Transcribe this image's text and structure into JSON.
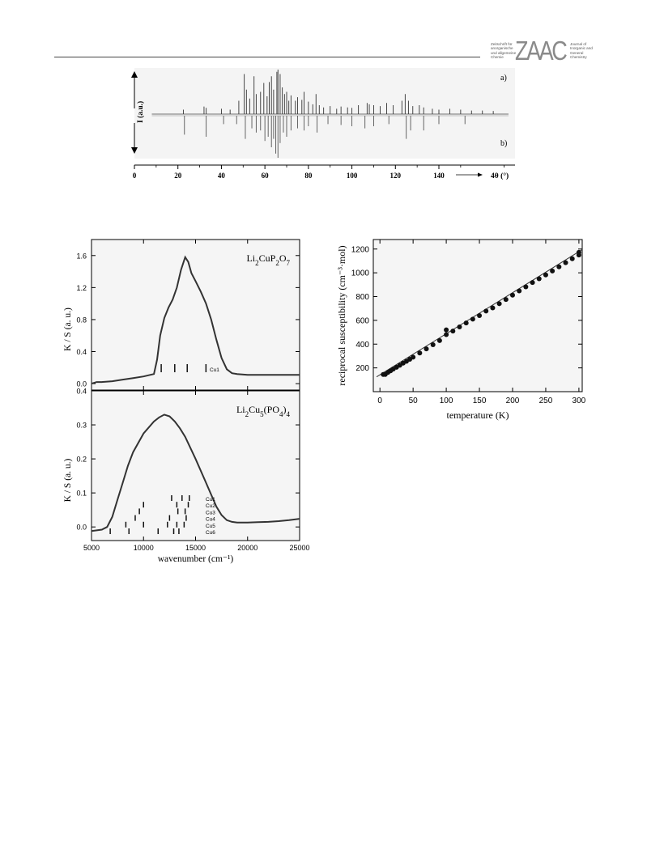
{
  "header": {
    "logo_text": "ZAAC",
    "logo_left": "Zeitschrift für\nanorganische\nund allgemeine\nChemie",
    "logo_right": "Journal of\nInorganic and\nGeneral\nChemistry"
  },
  "chart_data": [
    {
      "type": "line",
      "ylabel": "I (a.u.)",
      "xlabel": "4θ (°)",
      "xlim": [
        0,
        175
      ],
      "xticks": [
        0,
        20,
        40,
        60,
        80,
        100,
        120,
        140
      ],
      "panel_labels": [
        "a)",
        "b)"
      ],
      "series": [
        {
          "panel": "a)",
          "x": [
            22.5,
            32,
            33,
            40,
            44,
            48,
            50.5,
            51.5,
            53,
            55,
            56,
            58,
            59.5,
            61,
            62,
            63,
            64,
            65.5,
            66,
            67,
            68,
            69,
            70,
            71,
            72,
            74,
            75,
            77,
            78,
            80,
            82,
            83.5,
            85,
            87,
            90,
            93,
            95,
            98,
            100,
            103,
            107,
            108,
            110,
            113,
            116,
            119,
            123,
            124.5,
            126,
            128,
            131,
            133,
            137,
            140,
            145,
            150,
            155,
            160,
            165
          ],
          "y": [
            0.1,
            0.17,
            0.14,
            0.12,
            0.1,
            0.3,
            0.9,
            0.55,
            0.35,
            0.85,
            0.45,
            0.5,
            0.7,
            0.4,
            0.72,
            0.85,
            0.55,
            0.95,
            1.0,
            0.9,
            0.6,
            0.45,
            0.5,
            0.3,
            0.42,
            0.3,
            0.38,
            0.32,
            0.5,
            0.28,
            0.22,
            0.45,
            0.2,
            0.15,
            0.18,
            0.12,
            0.17,
            0.15,
            0.14,
            0.2,
            0.25,
            0.22,
            0.2,
            0.18,
            0.25,
            0.2,
            0.3,
            0.45,
            0.3,
            0.18,
            0.2,
            0.15,
            0.12,
            0.1,
            0.12,
            0.1,
            0.08,
            0.08,
            0.07
          ]
        },
        {
          "panel": "b)",
          "x": [
            23,
            33,
            41,
            47,
            51,
            54,
            56,
            58,
            60,
            61.5,
            63,
            64,
            65,
            66,
            67,
            68.5,
            70,
            72,
            75,
            78,
            80,
            84,
            89,
            95,
            100,
            106,
            110,
            117,
            125,
            127,
            133,
            140,
            152
          ],
          "y": [
            0.45,
            0.5,
            0.2,
            0.2,
            0.55,
            0.3,
            0.4,
            0.35,
            0.6,
            0.5,
            0.75,
            0.55,
            0.9,
            1.0,
            0.65,
            0.4,
            0.5,
            0.35,
            0.3,
            0.35,
            0.25,
            0.4,
            0.2,
            0.22,
            0.25,
            0.3,
            0.25,
            0.2,
            0.55,
            0.35,
            0.35,
            0.2,
            0.2
          ]
        }
      ]
    },
    {
      "type": "line",
      "xlabel": "wavenumber (cm⁻¹)",
      "ylabel": "K / S (a. u.)",
      "xlim": [
        5000,
        25000
      ],
      "xticks": [
        5000,
        10000,
        15000,
        20000,
        25000
      ],
      "panels": [
        {
          "label": "Li2CuP2O7",
          "ylim": [
            -0.08,
            1.8
          ],
          "yticks": [
            0.0,
            0.4,
            0.8,
            1.2,
            1.6
          ],
          "curve": {
            "x": [
              5000,
              5500,
              6000,
              7000,
              8000,
              9000,
              10000,
              11000,
              11300,
              11600,
              12000,
              12400,
              12800,
              13200,
              13600,
              14000,
              14300,
              14600,
              15000,
              15500,
              16000,
              16500,
              17000,
              17500,
              18000,
              18500,
              19000,
              20000,
              22000,
              25000
            ],
            "y": [
              0.0,
              0.02,
              0.02,
              0.03,
              0.05,
              0.07,
              0.09,
              0.12,
              0.3,
              0.6,
              0.82,
              0.95,
              1.05,
              1.2,
              1.42,
              1.58,
              1.52,
              1.38,
              1.28,
              1.15,
              1.0,
              0.8,
              0.55,
              0.32,
              0.18,
              0.13,
              0.12,
              0.11,
              0.11,
              0.11
            ]
          },
          "ticks": [
            {
              "name": "Cu1",
              "positions": [
                11700,
                13000,
                14200,
                16000
              ]
            }
          ]
        },
        {
          "label": "Li2Cu5(PO4)4",
          "ylim": [
            -0.04,
            0.4
          ],
          "yticks": [
            0.0,
            0.1,
            0.2,
            0.3,
            0.4
          ],
          "curve": {
            "x": [
              5000,
              5500,
              6000,
              6500,
              7000,
              7500,
              8000,
              8500,
              9000,
              10000,
              11000,
              11500,
              12000,
              12500,
              13000,
              13500,
              14000,
              15000,
              16000,
              17000,
              17500,
              18000,
              18500,
              19000,
              20000,
              21000,
              22000,
              23000,
              24000,
              25000
            ],
            "y": [
              -0.012,
              -0.01,
              -0.008,
              0.0,
              0.03,
              0.08,
              0.13,
              0.18,
              0.22,
              0.275,
              0.31,
              0.322,
              0.33,
              0.325,
              0.31,
              0.29,
              0.265,
              0.2,
              0.13,
              0.06,
              0.035,
              0.02,
              0.015,
              0.013,
              0.013,
              0.014,
              0.015,
              0.017,
              0.02,
              0.024
            ]
          },
          "ticks": [
            {
              "name": "Cu6",
              "positions": [
                6800,
                8600,
                11400,
                12900,
                13400
              ]
            },
            {
              "name": "Cu5",
              "positions": [
                8300,
                10000,
                12300,
                13200,
                13900
              ]
            },
            {
              "name": "Cu4",
              "positions": [
                9200,
                12500,
                14100
              ]
            },
            {
              "name": "Cu3",
              "positions": [
                9600,
                13300,
                14000
              ]
            },
            {
              "name": "Cu2",
              "positions": [
                10000,
                13200,
                14300
              ]
            },
            {
              "name": "Cu1",
              "positions": [
                12700,
                13700,
                14400
              ]
            }
          ]
        }
      ]
    },
    {
      "type": "scatter",
      "xlabel": "temperature (K)",
      "ylabel": "reciprocal susceptibility (cm⁻³·mol)",
      "xlim": [
        -10,
        305
      ],
      "ylim": [
        0,
        1280
      ],
      "xticks": [
        0,
        50,
        100,
        150,
        200,
        250,
        300
      ],
      "yticks": [
        200,
        400,
        600,
        800,
        1000,
        1200
      ],
      "series": [
        {
          "x": [
            5,
            8,
            12,
            16,
            20,
            25,
            30,
            35,
            40,
            45,
            50,
            60,
            70,
            80,
            90,
            100,
            100,
            110,
            120,
            130,
            140,
            150,
            160,
            170,
            180,
            190,
            200,
            210,
            220,
            230,
            240,
            250,
            260,
            270,
            280,
            290,
            300,
            300
          ],
          "y": [
            145,
            145,
            162,
            175,
            190,
            205,
            222,
            240,
            255,
            272,
            290,
            325,
            360,
            395,
            430,
            480,
            520,
            510,
            545,
            578,
            610,
            640,
            678,
            705,
            740,
            775,
            812,
            848,
            882,
            918,
            950,
            982,
            1015,
            1050,
            1085,
            1118,
            1150,
            1172
          ]
        }
      ],
      "fit_line": {
        "x": [
          -5,
          305
        ],
        "y": [
          125,
          1195
        ]
      }
    }
  ]
}
